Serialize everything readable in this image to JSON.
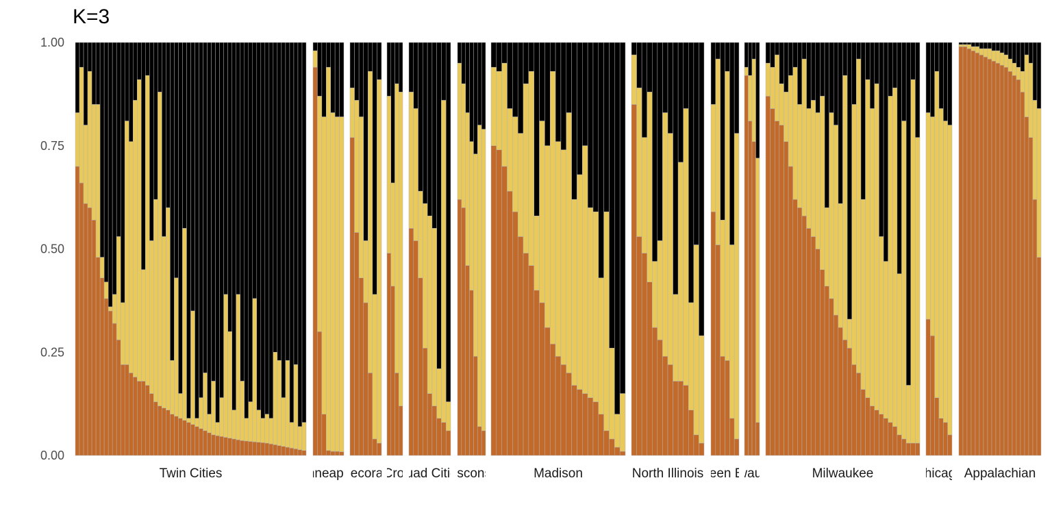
{
  "title": "K=3",
  "chart_data": {
    "type": "bar",
    "stacked": true,
    "title": "K=3",
    "ylim": [
      0,
      1
    ],
    "y_ticks": [
      "0.00",
      "0.25",
      "0.50",
      "0.75",
      "1.00"
    ],
    "grid": false,
    "legend": "none",
    "colors": {
      "cluster1": "#c26a2a",
      "cluster2": "#e8c95a",
      "cluster3": "#000000",
      "divider": "#b3b3b3"
    },
    "series_order": [
      "cluster1",
      "cluster2",
      "cluster3"
    ],
    "panels": [
      {
        "label": "Twin Cities",
        "q1": [
          0.7,
          0.66,
          0.61,
          0.6,
          0.57,
          0.48,
          0.43,
          0.38,
          0.35,
          0.32,
          0.28,
          0.22,
          0.22,
          0.2,
          0.19,
          0.18,
          0.18,
          0.17,
          0.15,
          0.13,
          0.12,
          0.115,
          0.11,
          0.1,
          0.095,
          0.09,
          0.085,
          0.08,
          0.075,
          0.07,
          0.065,
          0.06,
          0.055,
          0.05,
          0.048,
          0.046,
          0.044,
          0.042,
          0.04,
          0.038,
          0.036,
          0.035,
          0.034,
          0.033,
          0.032,
          0.031,
          0.03,
          0.028,
          0.026,
          0.024,
          0.022,
          0.02,
          0.018,
          0.016,
          0.014,
          0.012
        ],
        "q12": [
          0.83,
          0.94,
          0.8,
          0.93,
          0.85,
          0.85,
          0.48,
          0.42,
          0.36,
          0.39,
          0.53,
          0.37,
          0.81,
          0.76,
          0.86,
          0.91,
          0.45,
          0.92,
          0.52,
          0.62,
          0.88,
          0.53,
          0.6,
          0.23,
          0.43,
          0.15,
          0.55,
          0.09,
          0.35,
          0.09,
          0.14,
          0.2,
          0.1,
          0.18,
          0.08,
          0.14,
          0.39,
          0.3,
          0.11,
          0.39,
          0.18,
          0.09,
          0.13,
          0.38,
          0.11,
          0.09,
          0.1,
          0.09,
          0.25,
          0.23,
          0.14,
          0.23,
          0.08,
          0.22,
          0.07,
          0.08
        ]
      },
      {
        "label": "Minneapolis",
        "q1": [
          0.94,
          0.3,
          0.1,
          0.012,
          0.01,
          0.01,
          0.009
        ],
        "q12": [
          0.98,
          0.87,
          0.82,
          0.94,
          0.83,
          0.82,
          0.82
        ]
      },
      {
        "label": "Decorah",
        "q1": [
          0.77,
          0.54,
          0.43,
          0.37,
          0.2,
          0.04,
          0.03
        ],
        "q12": [
          0.89,
          0.86,
          0.82,
          0.52,
          0.93,
          0.39,
          0.91
        ]
      },
      {
        "label": "La Crosse",
        "q1": [
          0.49,
          0.41,
          0.2,
          0.12
        ],
        "q12": [
          0.87,
          0.66,
          0.9,
          0.88
        ]
      },
      {
        "label": "Quad Cities",
        "q1": [
          0.55,
          0.52,
          0.43,
          0.26,
          0.15,
          0.12,
          0.09,
          0.08,
          0.06
        ],
        "q12": [
          0.88,
          0.84,
          0.64,
          0.61,
          0.58,
          0.55,
          0.21,
          0.86,
          0.13
        ]
      },
      {
        "label": "Wisconsin",
        "q1": [
          0.62,
          0.6,
          0.46,
          0.4,
          0.24,
          0.07,
          0.06
        ],
        "q12": [
          0.95,
          0.9,
          0.83,
          0.76,
          0.73,
          0.8,
          0.79
        ]
      },
      {
        "label": "Madison",
        "q1": [
          0.75,
          0.74,
          0.7,
          0.64,
          0.59,
          0.53,
          0.49,
          0.46,
          0.4,
          0.37,
          0.31,
          0.27,
          0.24,
          0.22,
          0.2,
          0.17,
          0.16,
          0.15,
          0.14,
          0.13,
          0.1,
          0.06,
          0.04,
          0.02,
          0.01
        ],
        "q12": [
          0.94,
          0.93,
          0.95,
          0.84,
          0.82,
          0.78,
          0.9,
          0.93,
          0.58,
          0.81,
          0.75,
          0.93,
          0.76,
          0.74,
          0.83,
          0.62,
          0.68,
          0.75,
          0.6,
          0.59,
          0.43,
          0.59,
          0.26,
          0.1,
          0.15
        ]
      },
      {
        "label": "North Illinois",
        "q1": [
          0.85,
          0.53,
          0.49,
          0.42,
          0.31,
          0.28,
          0.24,
          0.22,
          0.18,
          0.18,
          0.17,
          0.11,
          0.05,
          0.03
        ],
        "q12": [
          0.97,
          0.89,
          0.77,
          0.88,
          0.47,
          0.52,
          0.83,
          0.78,
          0.39,
          0.71,
          0.84,
          0.37,
          0.51,
          0.29
        ]
      },
      {
        "label": "Queen Bee",
        "q1": [
          0.59,
          0.51,
          0.24,
          0.23,
          0.09,
          0.04
        ],
        "q12": [
          0.85,
          0.96,
          0.57,
          0.93,
          0.51,
          0.78
        ]
      },
      {
        "label": "Milwaukee",
        "q1": [
          0.92,
          0.81,
          0.76,
          0.08
        ],
        "q12": [
          0.94,
          0.92,
          0.96,
          0.72
        ]
      },
      {
        "label": "Milwaukee",
        "q1": [
          0.87,
          0.84,
          0.81,
          0.8,
          0.76,
          0.7,
          0.62,
          0.6,
          0.58,
          0.55,
          0.53,
          0.5,
          0.45,
          0.41,
          0.38,
          0.34,
          0.31,
          0.28,
          0.26,
          0.22,
          0.2,
          0.16,
          0.14,
          0.12,
          0.11,
          0.1,
          0.09,
          0.08,
          0.07,
          0.05,
          0.04,
          0.03,
          0.03,
          0.03
        ],
        "q12": [
          0.95,
          0.94,
          0.97,
          0.9,
          0.88,
          0.92,
          0.94,
          0.85,
          0.96,
          0.84,
          0.86,
          0.83,
          0.87,
          0.6,
          0.83,
          0.8,
          0.61,
          0.92,
          0.33,
          0.85,
          0.96,
          0.62,
          0.91,
          0.84,
          0.9,
          0.53,
          0.47,
          0.87,
          0.89,
          0.44,
          0.81,
          0.17,
          0.91,
          0.77
        ]
      },
      {
        "label": "Chicago",
        "q1": [
          0.33,
          0.29,
          0.14,
          0.09,
          0.08,
          0.05
        ],
        "q12": [
          0.83,
          0.82,
          0.93,
          0.84,
          0.81,
          0.8
        ]
      },
      {
        "label": "Appalachian",
        "q1": [
          0.99,
          0.99,
          0.985,
          0.98,
          0.975,
          0.97,
          0.965,
          0.96,
          0.955,
          0.95,
          0.945,
          0.94,
          0.93,
          0.92,
          0.91,
          0.88,
          0.82,
          0.77,
          0.62,
          0.48
        ],
        "q12": [
          0.995,
          0.995,
          0.995,
          0.99,
          0.99,
          0.985,
          0.985,
          0.985,
          0.98,
          0.98,
          0.975,
          0.97,
          0.96,
          0.95,
          0.94,
          0.93,
          0.97,
          0.95,
          0.86,
          0.84
        ]
      }
    ]
  }
}
